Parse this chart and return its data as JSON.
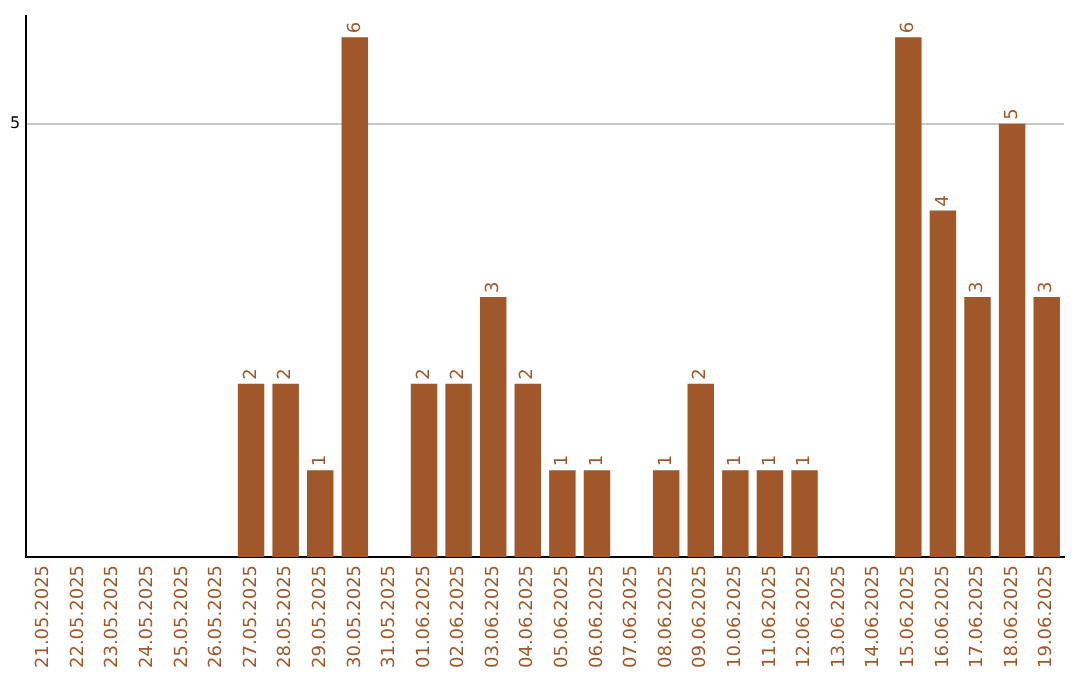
{
  "chart_data": {
    "type": "bar",
    "categories": [
      "21.05.2025",
      "22.05.2025",
      "23.05.2025",
      "24.05.2025",
      "25.05.2025",
      "26.05.2025",
      "27.05.2025",
      "28.05.2025",
      "29.05.2025",
      "30.05.2025",
      "31.05.2025",
      "01.06.2025",
      "02.06.2025",
      "03.06.2025",
      "04.06.2025",
      "05.06.2025",
      "06.06.2025",
      "07.06.2025",
      "08.06.2025",
      "09.06.2025",
      "10.06.2025",
      "11.06.2025",
      "12.06.2025",
      "13.06.2025",
      "14.06.2025",
      "15.06.2025",
      "16.06.2025",
      "17.06.2025",
      "18.06.2025",
      "19.06.2025"
    ],
    "values": [
      0,
      0,
      0,
      0,
      0,
      0,
      2,
      2,
      1,
      6,
      0,
      2,
      2,
      3,
      2,
      1,
      1,
      0,
      1,
      2,
      1,
      1,
      1,
      0,
      0,
      6,
      4,
      3,
      5,
      3
    ],
    "value_labels": [
      null,
      null,
      null,
      null,
      null,
      null,
      "2",
      "2",
      "1",
      "6",
      null,
      "2",
      "2",
      "3",
      "2",
      "1",
      "1",
      null,
      "1",
      "2",
      "1",
      "1",
      "1",
      null,
      null,
      "6",
      "4",
      "3",
      "5",
      "3"
    ],
    "color": "#a0582a",
    "ylim": [
      0,
      6.25
    ],
    "yticks": [
      5
    ],
    "grid": "y",
    "legend": false
  }
}
